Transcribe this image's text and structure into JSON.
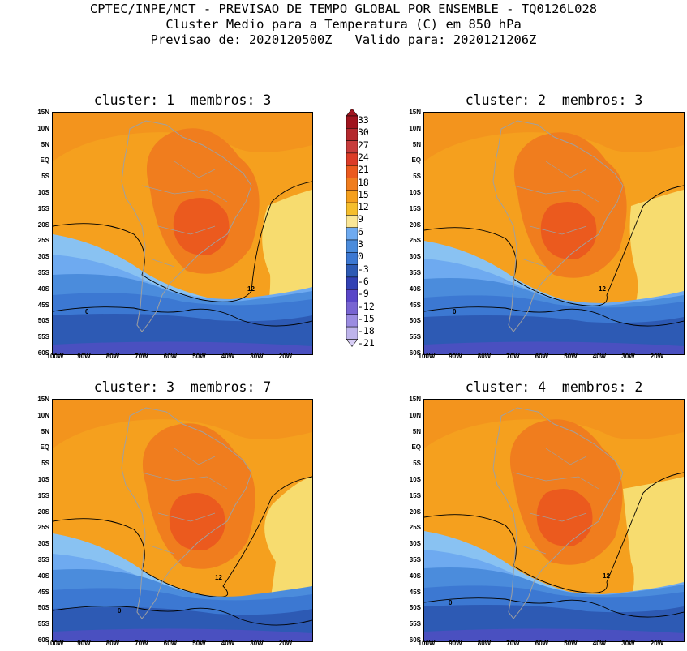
{
  "header": {
    "line1": "CPTEC/INPE/MCT - PREVISAO DE TEMPO GLOBAL POR ENSEMBLE - TQ0126L028",
    "line2": "Cluster Medio para a Temperatura (C) em 850 hPa",
    "line3": "Previsao de: 2020120500Z   Valido para: 2020121206Z"
  },
  "panels": [
    {
      "title": "cluster: 1  membros: 3"
    },
    {
      "title": "cluster: 2  membros: 3"
    },
    {
      "title": "cluster: 3  membros: 7"
    },
    {
      "title": "cluster: 4  membros: 2"
    }
  ],
  "axes": {
    "lat_labels": [
      "15N",
      "10N",
      "5N",
      "EQ",
      "5S",
      "10S",
      "15S",
      "20S",
      "25S",
      "30S",
      "35S",
      "40S",
      "45S",
      "50S",
      "55S",
      "60S"
    ],
    "lon_labels": [
      "100W",
      "90W",
      "80W",
      "70W",
      "60W",
      "50W",
      "40W",
      "30W",
      "20W"
    ]
  },
  "contour_labels": {
    "twelve": "12",
    "zero": "0"
  },
  "colorbar": {
    "labels": [
      "33",
      "30",
      "27",
      "24",
      "21",
      "18",
      "15",
      "12",
      "9",
      "6",
      "3",
      "0",
      "-3",
      "-6",
      "-9",
      "-12",
      "-15",
      "-18",
      "-21"
    ],
    "colors": [
      "#a0141e",
      "#b4282d",
      "#c83c3c",
      "#dc3c28",
      "#eb5a1e",
      "#f07d1e",
      "#f5a01e",
      "#f5be2d",
      "#fae696",
      "#6eaaf0",
      "#4b8cdc",
      "#3c78d2",
      "#2d5ab4",
      "#3241b4",
      "#5a46c8",
      "#7864d2",
      "#9b8ce1",
      "#beb4eb",
      "#d7cdf5"
    ]
  }
}
